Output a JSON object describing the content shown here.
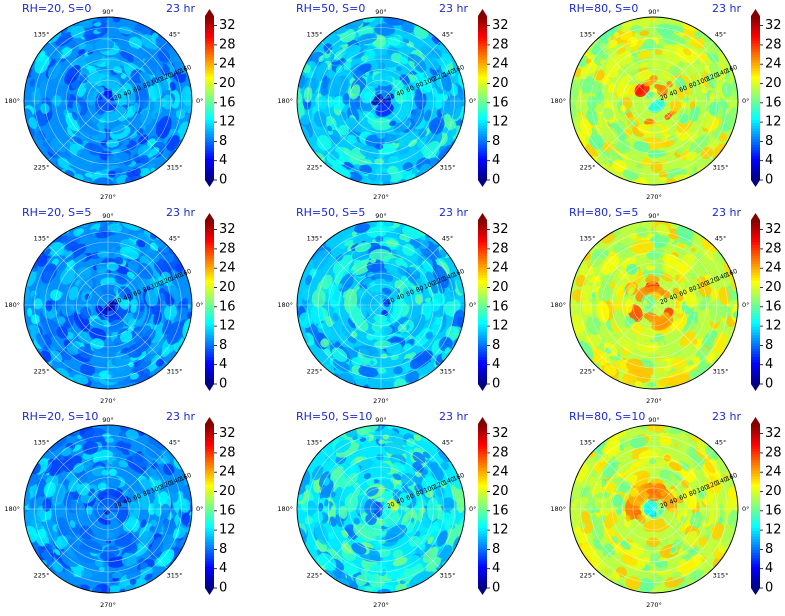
{
  "chart_data": {
    "type": "polar-heatmap",
    "time_label": "23 hr",
    "colormap": "jet",
    "colorbar": {
      "min": 0,
      "max": 34,
      "ticks": [
        0,
        4,
        8,
        12,
        16,
        20,
        24,
        28,
        32
      ]
    },
    "angle_ticks": [
      "0°",
      "45°",
      "90°",
      "135°",
      "180°",
      "225°",
      "270°",
      "315°"
    ],
    "radial_ticks": [
      20,
      40,
      60,
      80,
      100,
      120,
      140,
      160
    ],
    "radial_max": 160,
    "panels": [
      {
        "title": "RH=20, S=0",
        "rh": 20,
        "s": 0,
        "background_level": 9,
        "core": {
          "peak": 0,
          "radius": 14
        },
        "texture": 3
      },
      {
        "title": "RH=50, S=0",
        "rh": 50,
        "s": 0,
        "background_level": 11,
        "core": {
          "peak": 1,
          "radius": 18
        },
        "texture": 3
      },
      {
        "title": "RH=80, S=0",
        "rh": 80,
        "s": 0,
        "background_level": 19,
        "core": {
          "peak": 6,
          "radius": 12
        },
        "ring": {
          "peak": 30,
          "radius": 32,
          "width": 14
        },
        "texture": 3
      },
      {
        "title": "RH=20, S=5",
        "rh": 20,
        "s": 5,
        "background_level": 9,
        "core": {
          "peak": 0,
          "radius": 14
        },
        "texture": 3
      },
      {
        "title": "RH=50, S=5",
        "rh": 50,
        "s": 5,
        "background_level": 11,
        "core": {
          "peak": 2,
          "radius": 18
        },
        "texture": 3
      },
      {
        "title": "RH=80, S=5",
        "rh": 80,
        "s": 5,
        "background_level": 19,
        "core": {
          "peak": 8,
          "radius": 12
        },
        "ring": {
          "peak": 30,
          "radius": 34,
          "width": 15
        },
        "texture": 3
      },
      {
        "title": "RH=20, S=10",
        "rh": 20,
        "s": 10,
        "background_level": 9,
        "core": {
          "peak": 0,
          "radius": 14
        },
        "texture": 3
      },
      {
        "title": "RH=50, S=10",
        "rh": 50,
        "s": 10,
        "background_level": 12,
        "core": {
          "peak": 6,
          "radius": 14
        },
        "ring": {
          "peak": 26,
          "radius": 16,
          "width": 10,
          "center_deg": 30,
          "spread_deg": 70
        },
        "texture": 3
      },
      {
        "title": "RH=80, S=10",
        "rh": 80,
        "s": 10,
        "background_level": 19,
        "core": {
          "peak": 8,
          "radius": 12
        },
        "ring": {
          "peak": 30,
          "radius": 36,
          "width": 16,
          "center_deg": 120,
          "spread_deg": 120
        },
        "texture": 3
      }
    ]
  }
}
